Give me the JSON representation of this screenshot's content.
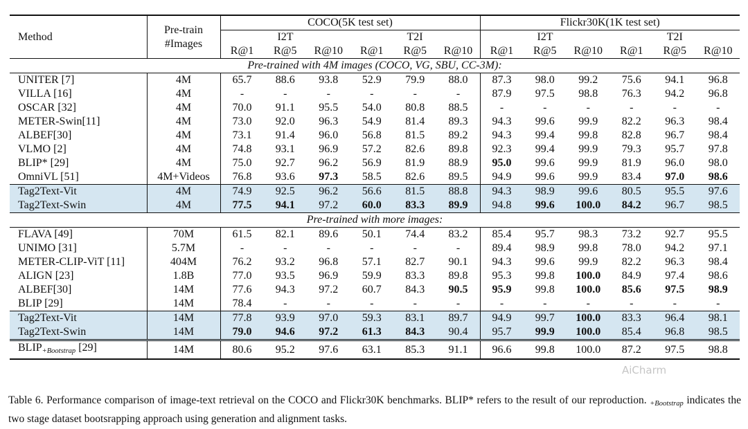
{
  "header": {
    "method": "Method",
    "pretrain_line1": "Pre-train",
    "pretrain_line2": "#Images",
    "coco": "COCO(5K test set)",
    "flickr": "Flickr30K(1K test set)",
    "i2t": "I2T",
    "t2i": "T2I",
    "metrics": [
      "R@1",
      "R@5",
      "R@10",
      "R@1",
      "R@5",
      "R@10",
      "R@1",
      "R@5",
      "R@10",
      "R@1",
      "R@5",
      "R@10"
    ]
  },
  "sections": [
    {
      "title": "Pre-trained with 4M images (COCO, VG, SBU, CC-3M):",
      "rows": [
        {
          "method": "UNITER [7]",
          "images": "4M",
          "values": [
            "65.7",
            "88.6",
            "93.8",
            "52.9",
            "79.9",
            "88.0",
            "87.3",
            "98.0",
            "99.2",
            "75.6",
            "94.1",
            "96.8"
          ],
          "bold": [],
          "shaded": false
        },
        {
          "method": "VILLA [16]",
          "images": "4M",
          "values": [
            "-",
            "-",
            "-",
            "-",
            "-",
            "-",
            "87.9",
            "97.5",
            "98.8",
            "76.3",
            "94.2",
            "96.8"
          ],
          "bold": [],
          "shaded": false
        },
        {
          "method": "OSCAR [32]",
          "images": "4M",
          "values": [
            "70.0",
            "91.1",
            "95.5",
            "54.0",
            "80.8",
            "88.5",
            "-",
            "-",
            "-",
            "-",
            "-",
            "-"
          ],
          "bold": [],
          "shaded": false
        },
        {
          "method": "METER-Swin[11]",
          "images": "4M",
          "values": [
            "73.0",
            "92.0",
            "96.3",
            "54.9",
            "81.4",
            "89.3",
            "94.3",
            "99.6",
            "99.9",
            "82.2",
            "96.3",
            "98.4"
          ],
          "bold": [],
          "shaded": false
        },
        {
          "method": "ALBEF[30]",
          "images": "4M",
          "values": [
            "73.1",
            "91.4",
            "96.0",
            "56.8",
            "81.5",
            "89.2",
            "94.3",
            "99.4",
            "99.8",
            "82.8",
            "96.7",
            "98.4"
          ],
          "bold": [],
          "shaded": false
        },
        {
          "method": "VLMO [2]",
          "images": "4M",
          "values": [
            "74.8",
            "93.1",
            "96.9",
            "57.2",
            "82.6",
            "89.8",
            "92.3",
            "99.4",
            "99.9",
            "79.3",
            "95.7",
            "97.8"
          ],
          "bold": [],
          "shaded": false
        },
        {
          "method": "BLIP* [29]",
          "images": "4M",
          "values": [
            "75.0",
            "92.7",
            "96.2",
            "56.9",
            "81.9",
            "88.9",
            "95.0",
            "99.6",
            "99.9",
            "81.9",
            "96.0",
            "98.0"
          ],
          "bold": [
            6
          ],
          "shaded": false
        },
        {
          "method": "OmniVL [51]",
          "images": "4M+Videos",
          "values": [
            "76.8",
            "93.6",
            "97.3",
            "58.5",
            "82.6",
            "89.5",
            "94.9",
            "99.6",
            "99.9",
            "83.4",
            "97.0",
            "98.6"
          ],
          "bold": [
            2,
            10,
            11
          ],
          "shaded": false
        },
        {
          "method": "Tag2Text-Vit",
          "images": "4M",
          "values": [
            "74.9",
            "92.5",
            "96.2",
            "56.6",
            "81.5",
            "88.8",
            "94.3",
            "98.9",
            "99.6",
            "80.5",
            "95.5",
            "97.6"
          ],
          "bold": [],
          "shaded": true
        },
        {
          "method": "Tag2Text-Swin",
          "images": "4M",
          "values": [
            "77.5",
            "94.1",
            "97.2",
            "60.0",
            "83.3",
            "89.9",
            "94.8",
            "99.6",
            "100.0",
            "84.2",
            "96.7",
            "98.5"
          ],
          "bold": [
            0,
            1,
            3,
            4,
            5,
            7,
            8,
            9
          ],
          "shaded": true
        }
      ]
    },
    {
      "title": "Pre-trained with more images:",
      "rows": [
        {
          "method": "FLAVA [49]",
          "images": "70M",
          "values": [
            "61.5",
            "82.1",
            "89.6",
            "50.1",
            "74.4",
            "83.2",
            "85.4",
            "95.7",
            "98.3",
            "73.2",
            "92.7",
            "95.5"
          ],
          "bold": [],
          "shaded": false
        },
        {
          "method": "UNIMO [31]",
          "images": "5.7M",
          "values": [
            "-",
            "-",
            "-",
            "-",
            "-",
            "-",
            "89.4",
            "98.9",
            "99.8",
            "78.0",
            "94.2",
            "97.1"
          ],
          "bold": [],
          "shaded": false
        },
        {
          "method": "METER-CLIP-ViT [11]",
          "images": "404M",
          "values": [
            "76.2",
            "93.2",
            "96.8",
            "57.1",
            "82.7",
            "90.1",
            "94.3",
            "99.6",
            "99.9",
            "82.2",
            "96.3",
            "98.4"
          ],
          "bold": [],
          "shaded": false
        },
        {
          "method": "ALIGN [23]",
          "images": "1.8B",
          "values": [
            "77.0",
            "93.5",
            "96.9",
            "59.9",
            "83.3",
            "89.8",
            "95.3",
            "99.8",
            "100.0",
            "84.9",
            "97.4",
            "98.6"
          ],
          "bold": [
            8
          ],
          "shaded": false
        },
        {
          "method": "ALBEF[30]",
          "images": "14M",
          "values": [
            "77.6",
            "94.3",
            "97.2",
            "60.7",
            "84.3",
            "90.5",
            "95.9",
            "99.8",
            "100.0",
            "85.6",
            "97.5",
            "98.9"
          ],
          "bold": [
            5,
            6,
            8,
            9,
            10,
            11
          ],
          "shaded": false
        },
        {
          "method": "BLIP [29]",
          "images": "14M",
          "values": [
            "78.4",
            "-",
            "-",
            "-",
            "-",
            "-",
            "-",
            "-",
            "-",
            "-",
            "-",
            "-"
          ],
          "bold": [],
          "shaded": false
        },
        {
          "method": "Tag2Text-Vit",
          "images": "14M",
          "values": [
            "77.8",
            "93.9",
            "97.0",
            "59.3",
            "83.1",
            "89.7",
            "94.9",
            "99.7",
            "100.0",
            "83.3",
            "96.4",
            "98.1"
          ],
          "bold": [
            8
          ],
          "shaded": true
        },
        {
          "method": "Tag2Text-Swin",
          "images": "14M",
          "values": [
            "79.0",
            "94.6",
            "97.2",
            "61.3",
            "84.3",
            "90.4",
            "95.7",
            "99.9",
            "100.0",
            "85.4",
            "96.8",
            "98.5"
          ],
          "bold": [
            0,
            1,
            2,
            3,
            4,
            7,
            8
          ],
          "shaded": true
        }
      ]
    }
  ],
  "final_row": {
    "method": "BLIP",
    "method_sub": "+Bootstrap",
    "method_ref": " [29]",
    "images": "14M",
    "values": [
      "80.6",
      "95.2",
      "97.6",
      "63.1",
      "85.3",
      "91.1",
      "96.6",
      "99.8",
      "100.0",
      "87.2",
      "97.5",
      "98.8"
    ]
  },
  "caption": {
    "part1": "Table 6. Performance comparison of image-text retrieval on the COCO and Flickr30K benchmarks. BLIP* refers to the result of our reproduction. ",
    "sub": "+Bootstrap",
    "part2": " indicates the two stage dataset bootsrapping approach using generation and alignment tasks."
  },
  "watermark": "AiCharm",
  "colors": {
    "highlight_row": "#d5e6f1",
    "rule": "#111111"
  }
}
